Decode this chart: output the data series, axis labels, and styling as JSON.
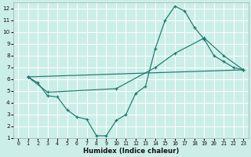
{
  "xlabel": "Humidex (Indice chaleur)",
  "background_color": "#cceee8",
  "grid_color": "#ffffff",
  "line_color": "#1a7a6e",
  "xlim": [
    -0.5,
    23.5
  ],
  "ylim": [
    1,
    12.5
  ],
  "xticks": [
    0,
    1,
    2,
    3,
    4,
    5,
    6,
    7,
    8,
    9,
    10,
    11,
    12,
    13,
    14,
    15,
    16,
    17,
    18,
    19,
    20,
    21,
    22,
    23
  ],
  "yticks": [
    1,
    2,
    3,
    4,
    5,
    6,
    7,
    8,
    9,
    10,
    11,
    12
  ],
  "lines": [
    {
      "x": [
        1,
        2,
        3,
        4,
        5,
        6,
        7,
        8,
        9,
        10,
        11,
        12,
        13,
        14,
        15,
        16,
        17,
        18,
        19,
        20,
        21,
        22,
        23
      ],
      "y": [
        6.2,
        5.7,
        4.6,
        4.5,
        3.4,
        2.8,
        2.6,
        1.2,
        1.2,
        2.5,
        3.0,
        4.8,
        5.4,
        8.6,
        11.0,
        12.2,
        11.8,
        10.4,
        9.4,
        8.0,
        7.5,
        7.0,
        6.8
      ]
    },
    {
      "x": [
        1,
        3,
        10,
        14,
        16,
        19,
        21,
        23
      ],
      "y": [
        6.2,
        4.9,
        5.2,
        7.0,
        8.2,
        9.5,
        8.0,
        6.8
      ]
    },
    {
      "x": [
        1,
        23
      ],
      "y": [
        6.2,
        6.8
      ]
    }
  ]
}
